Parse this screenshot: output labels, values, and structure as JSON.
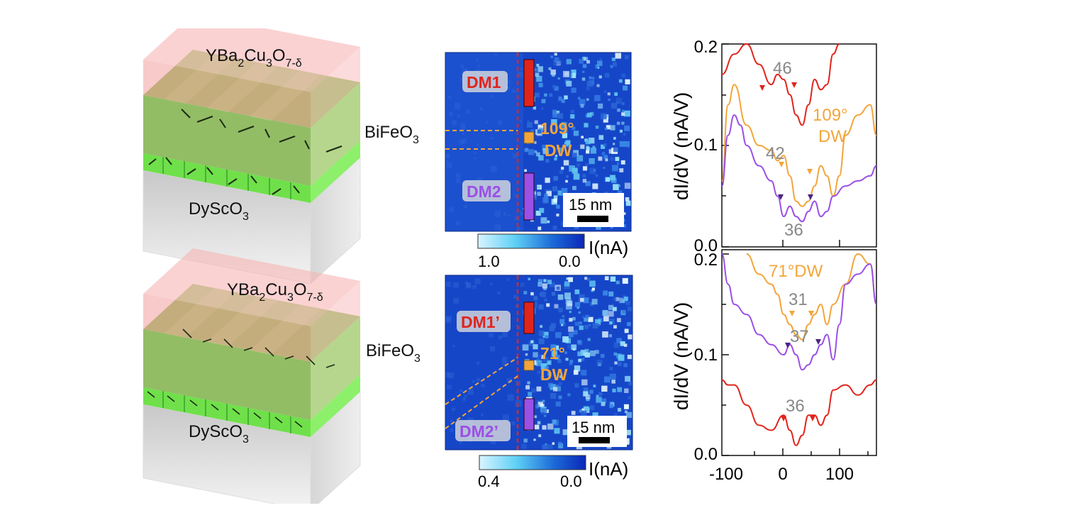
{
  "figure": {
    "schematics": [
      {
        "top_layer": {
          "base": "YBa",
          "s1": "2",
          "mid1": "Cu",
          "s2": "3",
          "mid2": "O",
          "s3": "7-δ"
        },
        "middle_layer": {
          "base": "BiFeO",
          "s1": "3"
        },
        "substrate": {
          "base": "DyScO",
          "s1": "3"
        }
      },
      {
        "top_layer": {
          "base": "YBa",
          "s1": "2",
          "mid1": "Cu",
          "s2": "3",
          "mid2": "O",
          "s3": "7-δ"
        },
        "middle_layer": {
          "base": "BiFeO",
          "s1": "3"
        },
        "substrate": {
          "base": "DyScO",
          "s1": "3"
        }
      }
    ],
    "maps": [
      {
        "label_dm_top": "DM1",
        "label_dw": [
          "109°",
          "DW"
        ],
        "label_dm_bottom": "DM2",
        "scalebar": "15 nm",
        "colorbar": {
          "min_label": "1.0",
          "max_label": "0.0",
          "unit": "I(nA)"
        }
      },
      {
        "label_dm_top": "DM1’",
        "label_dw": [
          "71°",
          "DW"
        ],
        "label_dm_bottom": "DM2’",
        "scalebar": "15 nm",
        "colorbar": {
          "min_label": "0.4",
          "max_label": "0.0",
          "unit": "I(nA)"
        }
      }
    ],
    "spectra": {
      "ylabel": "dI/dV (nA/V)",
      "top": {
        "yticks": [
          "0.0",
          "0.1",
          "0.2"
        ],
        "annotations": {
          "a46": "46",
          "a42": "42",
          "a36": "36",
          "dw": [
            "109°",
            "DW"
          ]
        }
      },
      "bottom": {
        "yticks": [
          "0.0",
          "0.1",
          "0.2"
        ],
        "xticks": [
          "-100",
          "0",
          "100"
        ],
        "annotations": {
          "dw": "71°DW",
          "a31": "31",
          "a37": "37",
          "a36": "36"
        }
      }
    },
    "colors": {
      "dm1": "#e0251c",
      "dw": "#f3a53a",
      "dm2": "#9b50e6",
      "layer_top": "#f4a3a3",
      "layer_mid": "#7ee84f",
      "map_blue": "#1646c8"
    }
  },
  "chart_data": [
    {
      "type": "line",
      "title": "",
      "ylabel": "dI/dV (nA/V)",
      "xlabel": "",
      "xlim": [
        -100,
        150
      ],
      "ylim": [
        0,
        0.2
      ],
      "series": [
        {
          "x": [
            -100,
            -80,
            -60,
            -40,
            -20,
            -10,
            0,
            10,
            20,
            30,
            40,
            50,
            60,
            70,
            80,
            90
          ],
          "y": [
            0.17,
            0.19,
            0.2,
            0.18,
            0.16,
            0.17,
            0.165,
            0.15,
            0.13,
            0.12,
            0.14,
            0.165,
            0.155,
            0.16,
            0.19,
            0.21
          ]
        },
        {
          "x": [
            -100,
            -90,
            -80,
            -60,
            -40,
            -20,
            -10,
            0,
            10,
            20,
            30,
            40,
            50,
            60,
            70,
            80,
            90,
            100,
            120,
            140,
            150
          ],
          "y": [
            0.065,
            0.14,
            0.16,
            0.12,
            0.1,
            0.095,
            0.085,
            0.09,
            0.07,
            0.045,
            0.04,
            0.045,
            0.06,
            0.08,
            0.07,
            0.05,
            0.07,
            0.11,
            0.13,
            0.14,
            0.11
          ]
        },
        {
          "x": [
            -100,
            -90,
            -80,
            -70,
            -60,
            -40,
            -20,
            -10,
            0,
            10,
            20,
            30,
            40,
            50,
            60,
            70,
            80,
            100,
            120,
            140,
            150
          ],
          "y": [
            0.06,
            0.11,
            0.13,
            0.12,
            0.1,
            0.08,
            0.065,
            0.05,
            0.03,
            0.04,
            0.03,
            0.025,
            0.035,
            0.045,
            0.03,
            0.035,
            0.05,
            0.06,
            0.065,
            0.07,
            0.08
          ]
        }
      ]
    },
    {
      "type": "line",
      "title": "",
      "ylabel": "dI/dV (nA/V)",
      "xlabel": "",
      "xlim": [
        -100,
        150
      ],
      "ylim": [
        0,
        0.2
      ],
      "series": [
        {
          "x": [
            -60,
            -40,
            -20,
            -10,
            0,
            10,
            20,
            30,
            40,
            50,
            60,
            70,
            80,
            100,
            120,
            140,
            150
          ],
          "y": [
            0.2,
            0.18,
            0.17,
            0.16,
            0.14,
            0.13,
            0.12,
            0.115,
            0.13,
            0.14,
            0.15,
            0.13,
            0.15,
            0.17,
            0.2,
            0.19,
            0.15
          ]
        },
        {
          "x": [
            -100,
            -90,
            -80,
            -60,
            -40,
            -20,
            0,
            10,
            20,
            30,
            40,
            50,
            60,
            70,
            80,
            90,
            100,
            120,
            140,
            150
          ],
          "y": [
            0.22,
            0.17,
            0.15,
            0.14,
            0.12,
            0.11,
            0.1,
            0.11,
            0.1,
            0.085,
            0.09,
            0.1,
            0.11,
            0.12,
            0.095,
            0.13,
            0.17,
            0.18,
            0.19,
            0.15
          ]
        },
        {
          "x": [
            -100,
            -90,
            -80,
            -60,
            -40,
            -20,
            0,
            10,
            20,
            30,
            40,
            50,
            60,
            70,
            80,
            100,
            120,
            140,
            150
          ],
          "y": [
            0.075,
            0.07,
            0.07,
            0.05,
            0.03,
            0.025,
            0.04,
            0.025,
            0.01,
            0.02,
            0.04,
            0.04,
            0.03,
            0.04,
            0.065,
            0.07,
            0.06,
            0.07,
            0.075
          ]
        }
      ]
    }
  ]
}
